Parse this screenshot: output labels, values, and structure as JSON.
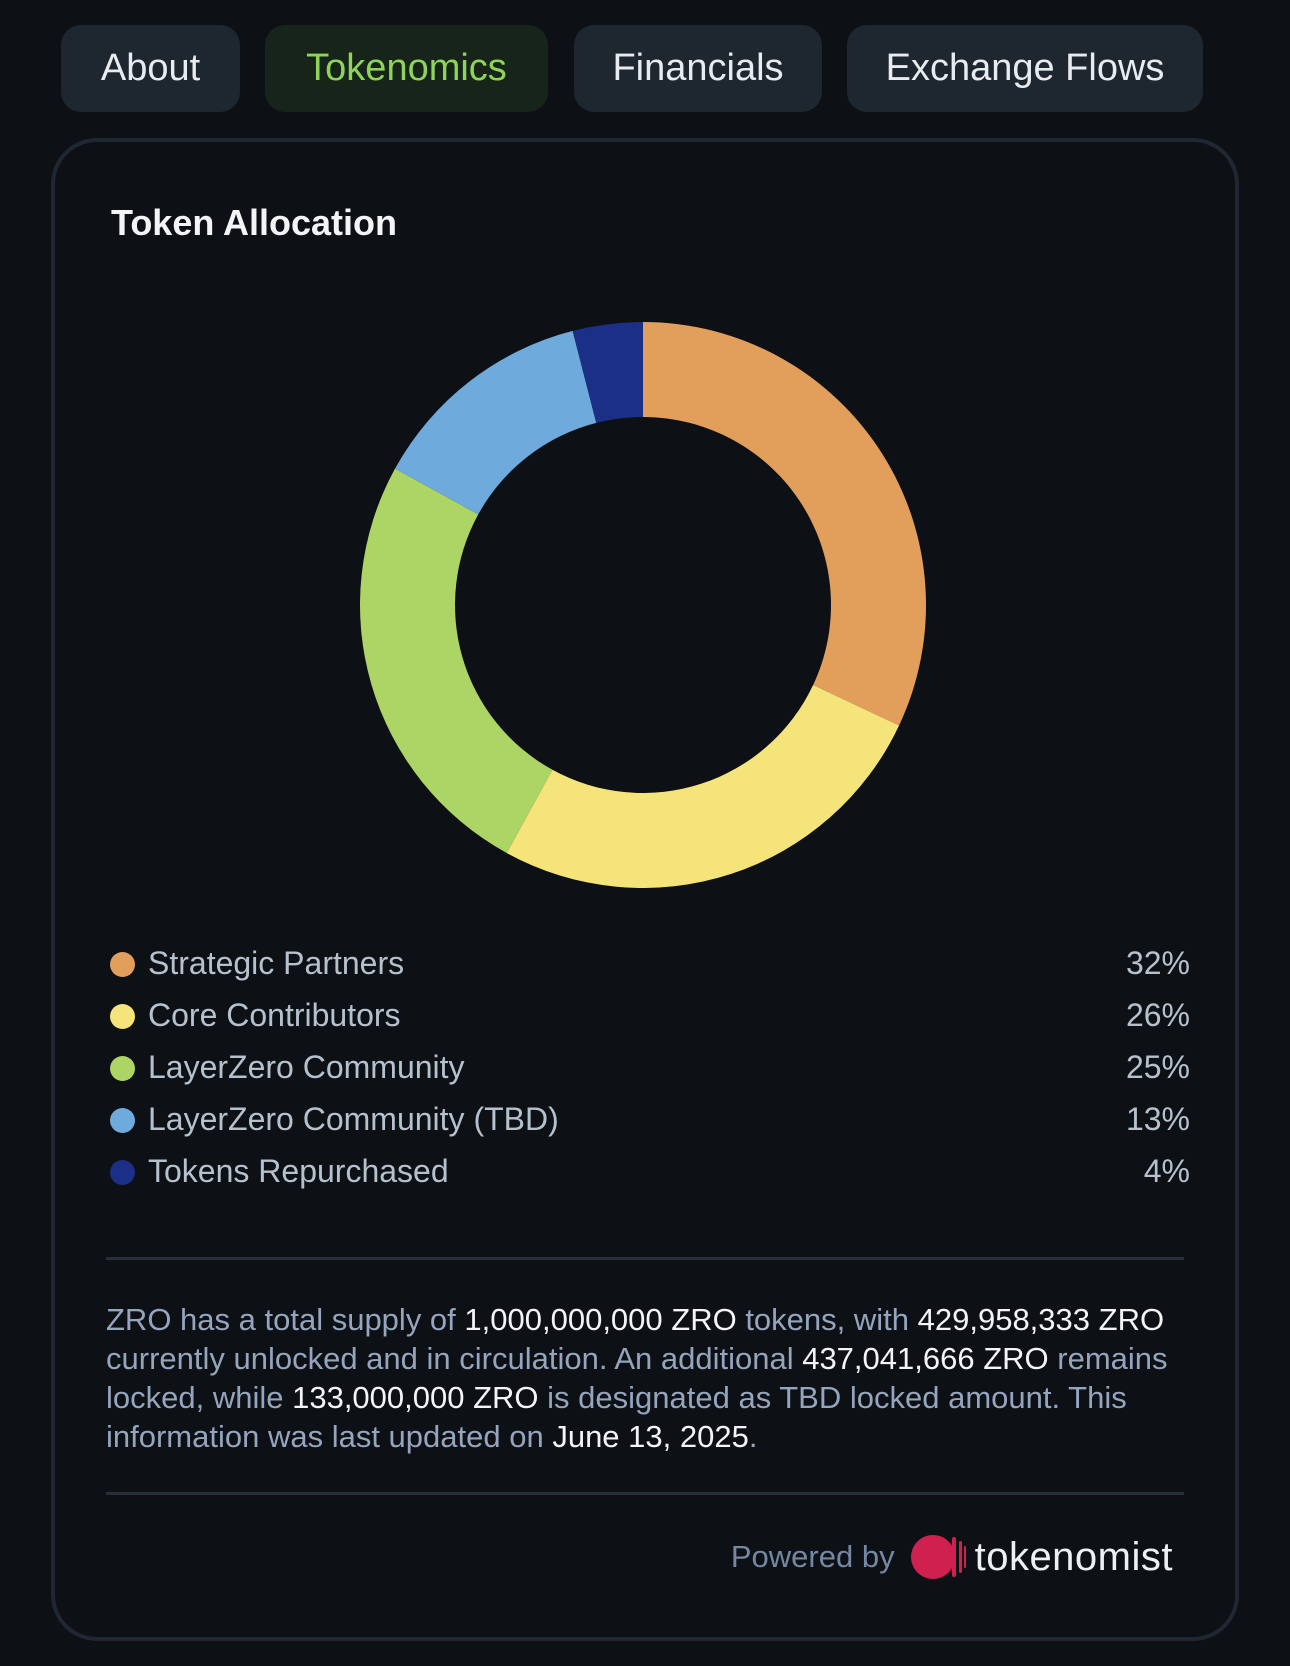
{
  "tabs": [
    {
      "label": "About",
      "active": false
    },
    {
      "label": "Tokenomics",
      "active": true
    },
    {
      "label": "Financials",
      "active": false
    },
    {
      "label": "Exchange Flows",
      "active": false
    }
  ],
  "card": {
    "title": "Token Allocation"
  },
  "chart_data": {
    "type": "pie",
    "title": "Token Allocation",
    "donut": true,
    "categories": [
      "Strategic Partners",
      "Core Contributors",
      "LayerZero Community",
      "LayerZero Community (TBD)",
      "Tokens Repurchased"
    ],
    "values": [
      32,
      26,
      25,
      13,
      4
    ],
    "colors": [
      "#e29e5b",
      "#f5e47a",
      "#add565",
      "#6eaadb",
      "#1b2f86"
    ],
    "legend_placement": "bottom"
  },
  "legend": [
    {
      "label": "Strategic Partners",
      "value": "32%",
      "color": "#e29e5b"
    },
    {
      "label": "Core Contributors",
      "value": "26%",
      "color": "#f5e47a"
    },
    {
      "label": "LayerZero Community",
      "value": "25%",
      "color": "#add565"
    },
    {
      "label": "LayerZero Community (TBD)",
      "value": "13%",
      "color": "#6eaadb"
    },
    {
      "label": "Tokens Repurchased",
      "value": "4%",
      "color": "#1b2f86"
    }
  ],
  "summary": {
    "p1": "ZRO has a total supply of ",
    "total_supply": "1,000,000,000 ZRO",
    "p2": " tokens, with ",
    "unlocked": "429,958,333 ZRO",
    "p3": " currently unlocked and in circulation. An additional ",
    "locked": "437,041,666 ZRO",
    "p4": " remains locked, while ",
    "tbd_locked": "133,000,000 ZRO",
    "p5": " is designated as TBD locked amount. This information was last updated on ",
    "updated": "June 13, 2025",
    "p6": "."
  },
  "footer": {
    "powered_by": "Powered by",
    "brand": "tokenomist",
    "brand_color": "#d0204f"
  }
}
